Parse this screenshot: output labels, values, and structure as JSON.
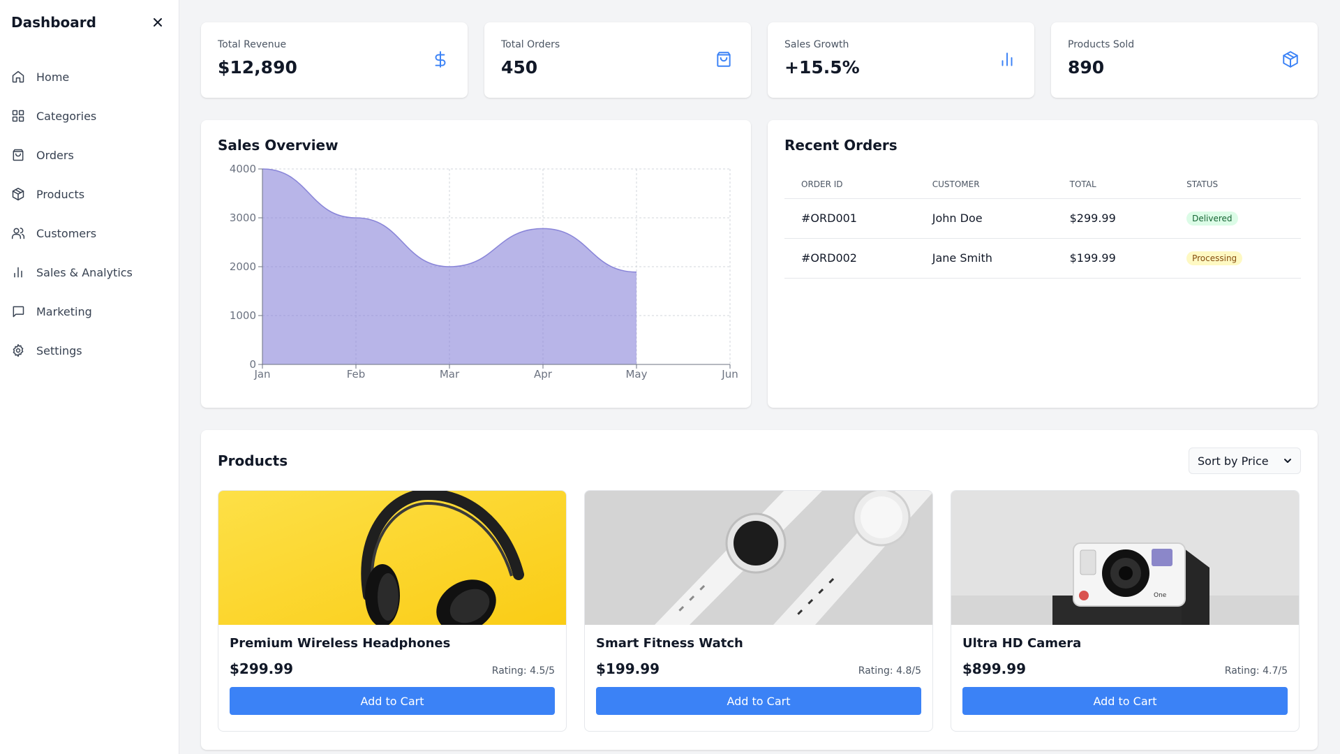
{
  "sidebar": {
    "title": "Dashboard",
    "items": [
      {
        "label": "Home",
        "icon": "home-icon"
      },
      {
        "label": "Categories",
        "icon": "grid-icon"
      },
      {
        "label": "Orders",
        "icon": "shopping-bag-icon"
      },
      {
        "label": "Products",
        "icon": "package-icon"
      },
      {
        "label": "Customers",
        "icon": "users-icon"
      },
      {
        "label": "Sales & Analytics",
        "icon": "bar-chart-icon"
      },
      {
        "label": "Marketing",
        "icon": "message-icon"
      },
      {
        "label": "Settings",
        "icon": "gear-icon"
      }
    ]
  },
  "stats": [
    {
      "label": "Total Revenue",
      "value": "$12,890",
      "icon": "dollar-icon"
    },
    {
      "label": "Total Orders",
      "value": "450",
      "icon": "shopping-bag-icon"
    },
    {
      "label": "Sales Growth",
      "value": "+15.5%",
      "icon": "bar-chart-icon"
    },
    {
      "label": "Products Sold",
      "value": "890",
      "icon": "package-icon"
    }
  ],
  "sales_overview": {
    "title": "Sales Overview"
  },
  "chart_data": {
    "type": "area",
    "title": "Sales Overview",
    "categories": [
      "Jan",
      "Feb",
      "Mar",
      "Apr",
      "May",
      "Jun"
    ],
    "values": [
      4000,
      3000,
      2000,
      2780,
      1890,
      null
    ],
    "yticks": [
      0,
      1000,
      2000,
      3000,
      4000
    ],
    "ylim": [
      0,
      4000
    ],
    "grid": true,
    "color": "#8884d8"
  },
  "recent_orders": {
    "title": "Recent Orders",
    "columns": [
      "ORDER ID",
      "CUSTOMER",
      "TOTAL",
      "STATUS"
    ],
    "rows": [
      {
        "id": "#ORD001",
        "customer": "John Doe",
        "total": "$299.99",
        "status": "Delivered"
      },
      {
        "id": "#ORD002",
        "customer": "Jane Smith",
        "total": "$199.99",
        "status": "Processing"
      }
    ]
  },
  "products": {
    "title": "Products",
    "sort_label": "Sort by Price",
    "button_label": "Add to Cart",
    "items": [
      {
        "name": "Premium Wireless Headphones",
        "price": "$299.99",
        "rating": "Rating: 4.5/5",
        "image": "headphones-photo"
      },
      {
        "name": "Smart Fitness Watch",
        "price": "$199.99",
        "rating": "Rating: 4.8/5",
        "image": "smartwatch-photo"
      },
      {
        "name": "Ultra HD Camera",
        "price": "$899.99",
        "rating": "Rating: 4.7/5",
        "image": "camera-photo"
      }
    ]
  },
  "colors": {
    "accent": "#3b82f6",
    "chart_fill": "#8884d8",
    "delivered_bg": "#dcfce7",
    "processing_bg": "#fef9c3"
  }
}
